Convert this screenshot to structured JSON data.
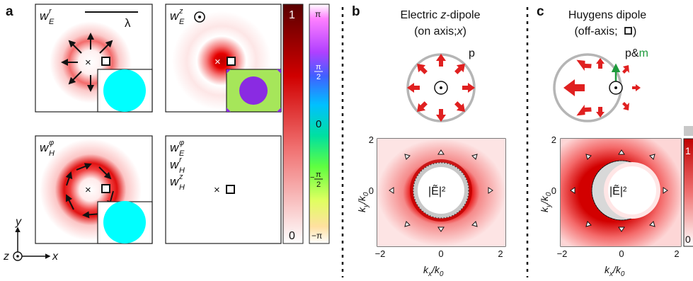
{
  "panel_labels": {
    "a": "a",
    "b": "b",
    "c": "c"
  },
  "panel_a": {
    "tiles": {
      "wEr": {
        "w": "w",
        "sub": "E",
        "sup": "r"
      },
      "wEz": {
        "w": "w",
        "sub": "E",
        "sup": "z",
        "marker": "⊙"
      },
      "wHphi": {
        "w": "w",
        "sub": "H",
        "sup": "φ"
      },
      "zero_list": [
        {
          "w": "w",
          "sub": "E",
          "sup": "φ"
        },
        {
          "w": "w",
          "sub": "H",
          "sup": "r"
        },
        {
          "w": "w",
          "sub": "H",
          "sup": "z"
        }
      ]
    },
    "scale_bar": "λ",
    "center_marks": {
      "cross": "×",
      "square_marker": "square"
    },
    "colors": {
      "red": "#d10000",
      "cyan": "#00ffff",
      "purple": "#8a2be2",
      "lime": "#a6e65a"
    }
  },
  "amplitude_bar": {
    "top": "1",
    "bottom": "0",
    "colors": [
      "#6b0000",
      "#e00000",
      "#ffffff"
    ]
  },
  "phase_bar": {
    "ticks": [
      "π",
      "π/2",
      "0",
      "−π/2",
      "−π"
    ],
    "tick_parts": {
      "pi": "π",
      "half_num": "π",
      "half_den": "2",
      "zero": "0",
      "minus": "−",
      "minus_pi": "−π"
    }
  },
  "axes_glyph": {
    "x": "x",
    "y": "y",
    "z": "z"
  },
  "panel_b": {
    "title1": "Electric z-dipole",
    "title1_parts": {
      "pre": "Electric ",
      "z": "z",
      "post": "-dipole"
    },
    "title2_parts": {
      "pre": "(on axis;",
      "x": "x",
      "post": ")"
    },
    "dipole_label": "p",
    "map_label": "|Ẽ|²",
    "x_ticks": [
      "−2",
      "0",
      "2"
    ],
    "y_ticks": [
      "2",
      "0"
    ],
    "xlabel": {
      "k": "k",
      "sub": "x",
      "den": "/k",
      "den_sub": "0"
    },
    "ylabel": {
      "k": "k",
      "sub": "y",
      "den": "/k",
      "den_sub": "0"
    }
  },
  "panel_c": {
    "title1": "Huygens dipole",
    "title2_parts": {
      "pre": "(off-axis;",
      "post": ")"
    },
    "dipole_label_p": "p&",
    "dipole_label_m": "m",
    "label_colors": {
      "m": "#1e9a3c"
    },
    "map_label": "|Ẽ|²",
    "x_ticks": [
      "−2",
      "0",
      "2"
    ],
    "y_ticks": [
      "2",
      "0"
    ],
    "xlabel": {
      "k": "k",
      "sub": "x",
      "den": "/k",
      "den_sub": "0"
    },
    "ylabel": {
      "k": "k",
      "sub": "y",
      "den": "/k",
      "den_sub": "0"
    },
    "colorbar_ticks": [
      "1",
      "0"
    ]
  }
}
